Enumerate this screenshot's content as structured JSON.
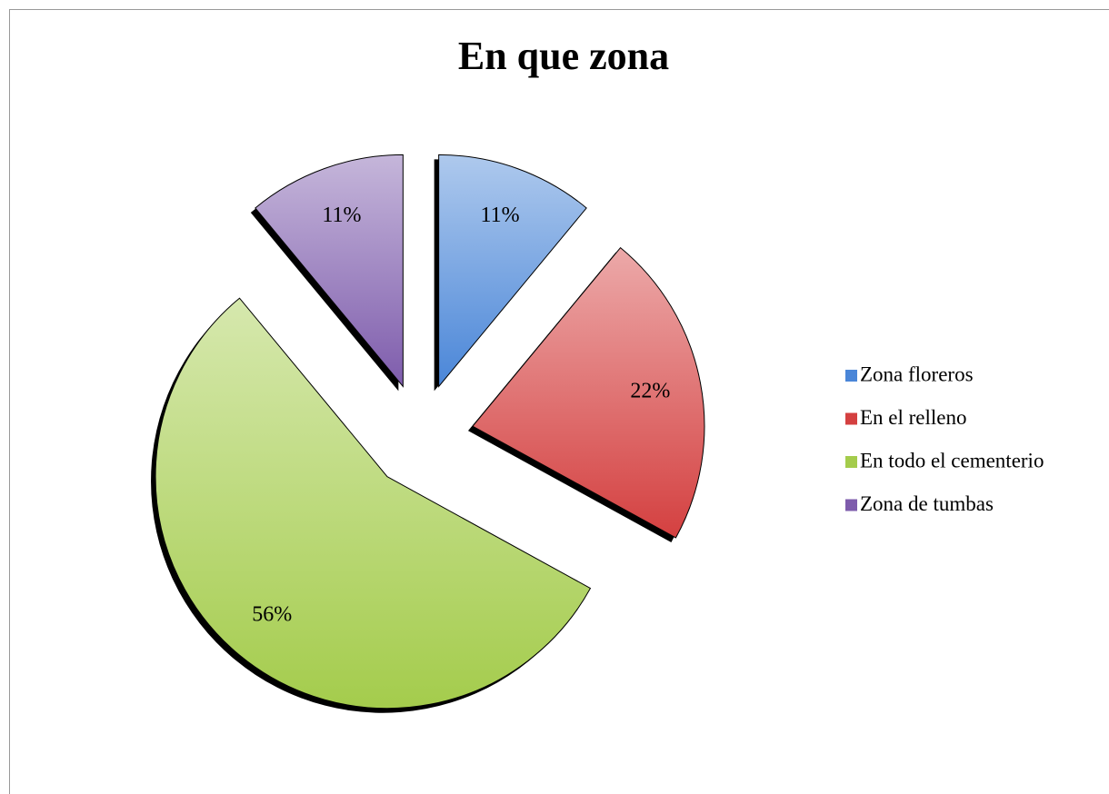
{
  "chart_data": {
    "type": "pie",
    "title": "En que zona",
    "categories": [
      "Zona floreros",
      "En el relleno",
      "En todo el cementerio",
      "Zona de tumbas"
    ],
    "values": [
      11,
      22,
      56,
      11
    ],
    "value_labels": [
      "11%",
      "22%",
      "56%",
      "11%"
    ],
    "colors": [
      "#4a86d8",
      "#d44040",
      "#a4cc4c",
      "#7e5cac"
    ],
    "legend": "right"
  }
}
